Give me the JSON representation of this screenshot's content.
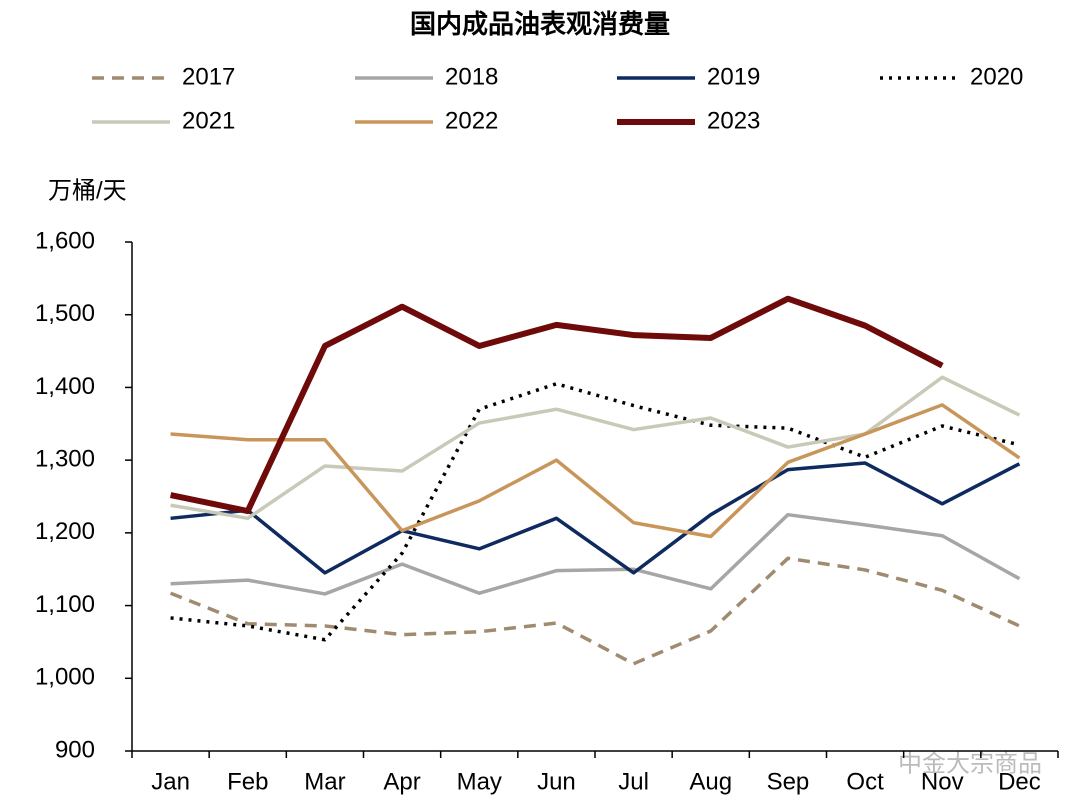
{
  "chart_data": {
    "type": "line",
    "title": "国内成品油表观消费量",
    "y_label": "万桶/天",
    "watermark": "中金大宗商品",
    "categories": [
      "Jan",
      "Feb",
      "Mar",
      "Apr",
      "May",
      "Jun",
      "Jul",
      "Aug",
      "Sep",
      "Oct",
      "Nov",
      "Dec"
    ],
    "series": [
      {
        "name": "2017",
        "color": "#a08a70",
        "style": "dashed",
        "values": [
          1117,
          1075,
          1072,
          1060,
          1064,
          1076,
          1020,
          1065,
          1165,
          1149,
          1121,
          1072
        ]
      },
      {
        "name": "2018",
        "color": "#a6a6a6",
        "style": "solid",
        "values": [
          1130,
          1135,
          1116,
          1157,
          1117,
          1148,
          1150,
          1123,
          1225,
          1211,
          1196,
          1137
        ]
      },
      {
        "name": "2019",
        "color": "#0e2a5e",
        "style": "solid",
        "values": [
          1220,
          1231,
          1145,
          1203,
          1178,
          1220,
          1145,
          1225,
          1287,
          1296,
          1240,
          1295
        ]
      },
      {
        "name": "2020",
        "color": "#000000",
        "style": "dotted",
        "values": [
          1083,
          1072,
          1053,
          1172,
          1370,
          1405,
          1375,
          1348,
          1344,
          1304,
          1347,
          1321
        ]
      },
      {
        "name": "2021",
        "color": "#c9c9b8",
        "style": "solid",
        "values": [
          1238,
          1220,
          1292,
          1285,
          1351,
          1370,
          1342,
          1358,
          1318,
          1336,
          1414,
          1362
        ]
      },
      {
        "name": "2022",
        "color": "#c8955a",
        "style": "solid",
        "values": [
          1336,
          1328,
          1328,
          1203,
          1244,
          1300,
          1214,
          1195,
          1297,
          1336,
          1376,
          1303
        ]
      },
      {
        "name": "2023",
        "color": "#6e0a0a",
        "style": "solid",
        "values": [
          1252,
          1230,
          1457,
          1511,
          1457,
          1486,
          1472,
          1468,
          1522,
          1485,
          1430,
          null
        ]
      }
    ],
    "ylim": [
      900,
      1600
    ],
    "yticks": [
      900,
      {
        "value": 1000,
        "label": "1,000"
      },
      {
        "value": 1100,
        "label": "1,100"
      },
      {
        "value": 1200,
        "label": "1,200"
      },
      {
        "value": 1300,
        "label": "1,300"
      },
      {
        "value": 1400,
        "label": "1,400"
      },
      {
        "value": 1500,
        "label": "1,500"
      },
      {
        "value": 1600,
        "label": "1,600"
      }
    ],
    "grid": false,
    "legend": "top"
  }
}
